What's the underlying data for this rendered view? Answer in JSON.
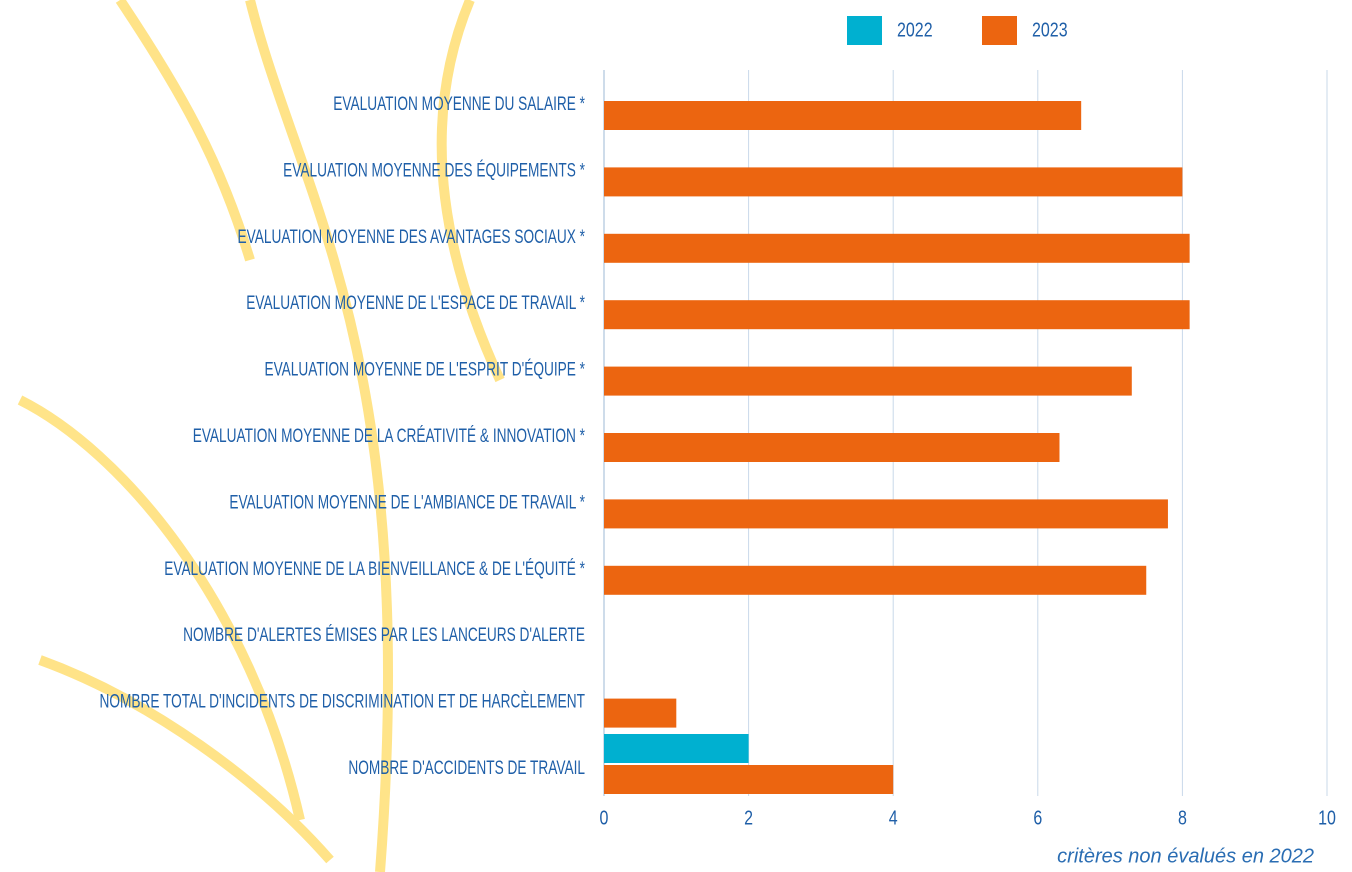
{
  "chart_data": {
    "type": "barh",
    "categories": [
      "EVALUATION MOYENNE DU SALAIRE *",
      "EVALUATION MOYENNE DES ÉQUIPEMENTS *",
      "EVALUATION MOYENNE DES AVANTAGES SOCIAUX *",
      "EVALUATION MOYENNE DE L'ESPACE DE TRAVAIL *",
      "EVALUATION MOYENNE DE L'ESPRIT D'ÉQUIPE *",
      "EVALUATION MOYENNE DE LA CRÉATIVITÉ & INNOVATION *",
      "EVALUATION MOYENNE DE L'AMBIANCE DE TRAVAIL *",
      "EVALUATION MOYENNE DE LA BIENVEILLANCE & DE L'ÉQUITÉ *",
      "NOMBRE D'ALERTES ÉMISES PAR LES LANCEURS D'ALERTE",
      "NOMBRE TOTAL D'INCIDENTS DE DISCRIMINATION ET DE HARCÈLEMENT",
      "NOMBRE D'ACCIDENTS DE TRAVAIL"
    ],
    "series": [
      {
        "name": "2022",
        "color": "#00b0d0",
        "values": [
          null,
          null,
          null,
          null,
          null,
          null,
          null,
          null,
          0,
          0,
          2
        ]
      },
      {
        "name": "2023",
        "color": "#ec6510",
        "values": [
          6.6,
          8.0,
          8.1,
          8.1,
          7.3,
          6.3,
          7.8,
          7.5,
          0,
          1,
          4
        ]
      }
    ],
    "xlim": [
      0,
      10
    ],
    "xticks": [
      0,
      2,
      4,
      6,
      8,
      10
    ],
    "grid": true,
    "legend": "top",
    "annotation": "critères non évalués en 2022"
  }
}
